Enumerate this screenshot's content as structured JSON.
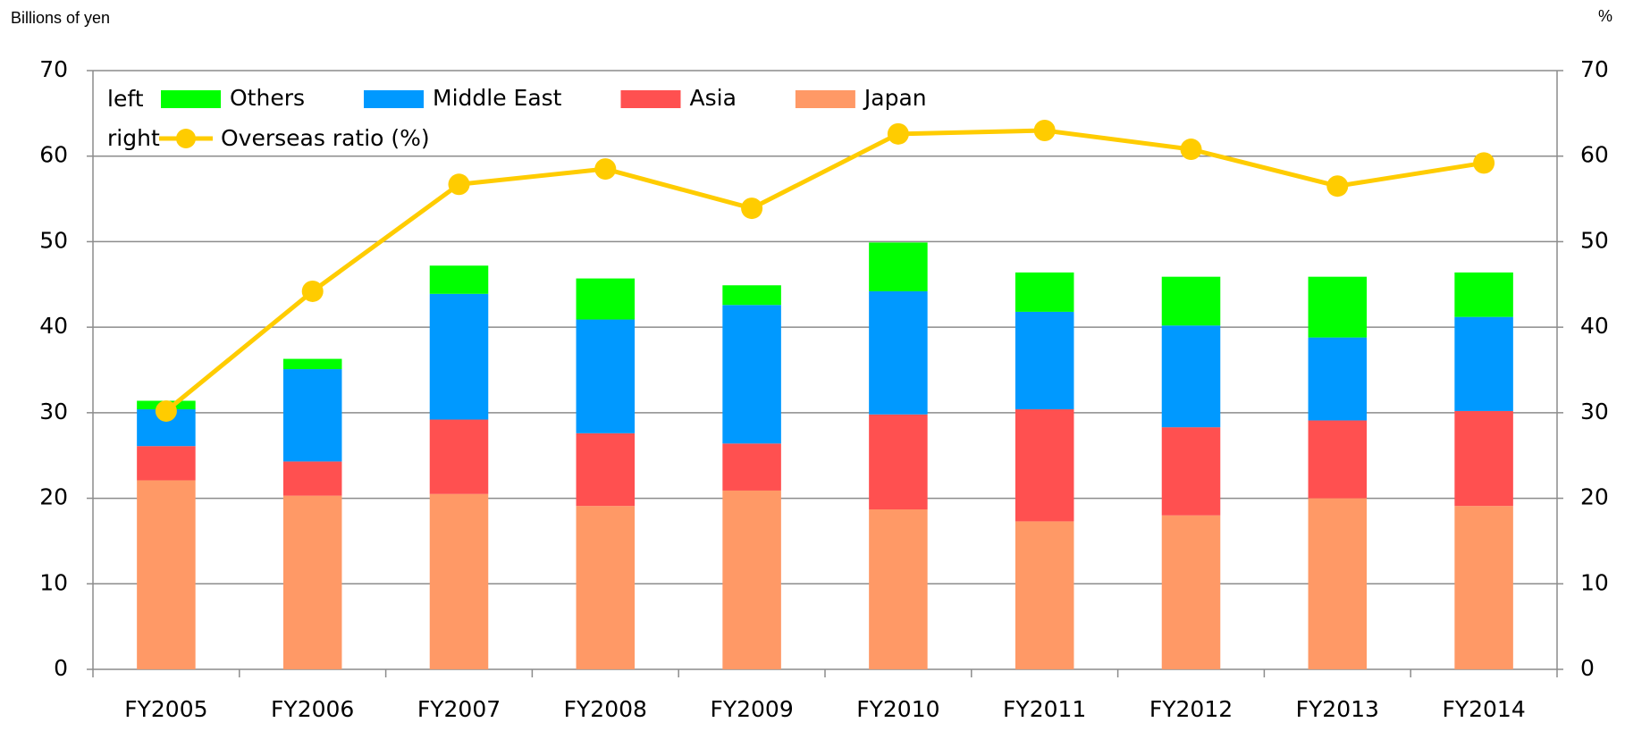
{
  "chart_data": {
    "type": "bar",
    "y_axis_label": "Billions of yen",
    "y2_axis_label": "%",
    "legend_left_label": "left",
    "legend_right_label": "right",
    "categories": [
      "FY2005",
      "FY2006",
      "FY2007",
      "FY2008",
      "FY2009",
      "FY2010",
      "FY2011",
      "FY2012",
      "FY2013",
      "FY2014"
    ],
    "series": [
      {
        "name": "Japan",
        "color": "#ff9966",
        "values": [
          22.1,
          20.3,
          20.5,
          19.1,
          20.9,
          18.7,
          17.3,
          18.0,
          20.0,
          19.1
        ]
      },
      {
        "name": "Asia",
        "color": "#ff5050",
        "values": [
          4.0,
          4.0,
          8.7,
          8.5,
          5.5,
          11.1,
          13.1,
          10.3,
          9.1,
          11.1
        ]
      },
      {
        "name": "Middle East",
        "color": "#0099ff",
        "values": [
          4.3,
          10.8,
          14.7,
          13.3,
          16.2,
          14.4,
          11.4,
          11.9,
          9.7,
          11.0
        ]
      },
      {
        "name": "Others",
        "color": "#00ff00",
        "values": [
          1.0,
          1.2,
          3.3,
          4.8,
          2.3,
          5.7,
          4.6,
          5.7,
          7.1,
          5.2
        ]
      },
      {
        "name": "Overseas ratio (%)",
        "color": "#ffcc00",
        "type": "line",
        "axis": "y2",
        "values": [
          30.2,
          44.2,
          56.7,
          58.5,
          53.9,
          62.6,
          63.0,
          60.8,
          56.5,
          59.2
        ]
      }
    ],
    "ylim": [
      0,
      70
    ],
    "yticks": [
      0,
      10,
      20,
      30,
      40,
      50,
      60,
      70
    ],
    "y2lim": [
      0,
      70
    ],
    "y2ticks": [
      0,
      10,
      20,
      30,
      40,
      50,
      60,
      70
    ],
    "grid": true
  }
}
